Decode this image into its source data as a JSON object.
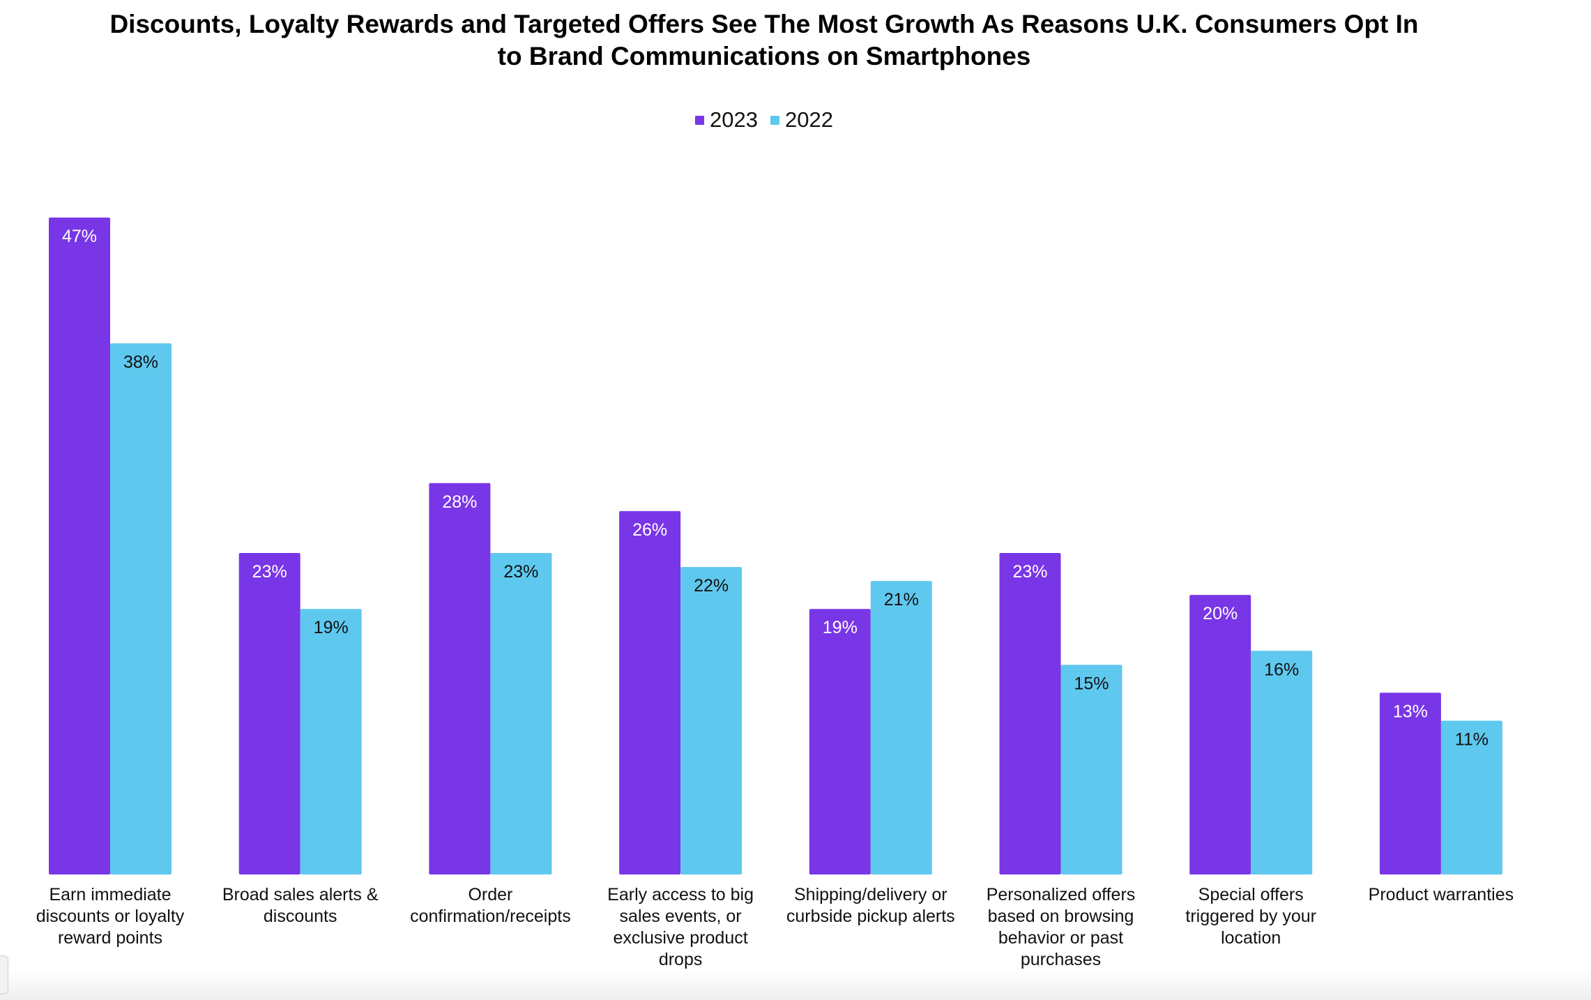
{
  "chart_data": {
    "type": "bar",
    "title_lines": [
      "Discounts, Loyalty Rewards and Targeted Offers See The Most Growth As Reasons U.K. Consumers Opt In",
      "to Brand Communications on Smartphones"
    ],
    "title": "Discounts, Loyalty Rewards and Targeted Offers See The Most Growth As Reasons U.K. Consumers Opt In to Brand Communications on Smartphones",
    "xlabel": "",
    "ylabel": "",
    "ylim": [
      0,
      47
    ],
    "grid": false,
    "legend_position": "top-center",
    "categories": [
      "Earn immediate discounts or loyalty reward points",
      "Broad sales alerts & discounts",
      "Order confirmation/receipts",
      "Early access to big sales events, or exclusive product drops",
      "Shipping/delivery or curbside pickup alerts",
      "Personalized offers based on browsing behavior or past purchases",
      "Special offers triggered by your location",
      "Product warranties"
    ],
    "category_label_lines": [
      [
        "Earn immediate",
        "discounts or loyalty",
        "reward points"
      ],
      [
        "Broad sales alerts &",
        "discounts"
      ],
      [
        "Order",
        "confirmation/receipts"
      ],
      [
        "Early access to big",
        "sales events, or",
        "exclusive product",
        "drops"
      ],
      [
        "Shipping/delivery or",
        "curbside pickup alerts"
      ],
      [
        "Personalized offers",
        "based on browsing",
        "behavior or past",
        "purchases"
      ],
      [
        "Special offers",
        "triggered by your",
        "location"
      ],
      [
        "Product warranties"
      ]
    ],
    "series": [
      {
        "name": "2023",
        "color": "#7936E6",
        "label_color": "#FFFFFF",
        "values": [
          47,
          23,
          28,
          26,
          19,
          23,
          20,
          13
        ],
        "data_labels": [
          "47%",
          "23%",
          "28%",
          "26%",
          "19%",
          "23%",
          "20%",
          "13%"
        ]
      },
      {
        "name": "2022",
        "color": "#5FC8EE",
        "label_color": "#111111",
        "values": [
          38,
          19,
          23,
          22,
          21,
          15,
          16,
          11
        ],
        "data_labels": [
          "38%",
          "19%",
          "23%",
          "22%",
          "21%",
          "15%",
          "16%",
          "11%"
        ]
      }
    ],
    "unit": "%"
  }
}
